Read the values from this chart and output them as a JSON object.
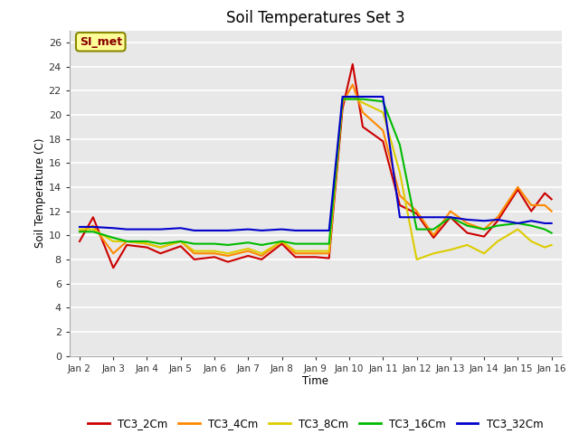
{
  "title": "Soil Temperatures Set 3",
  "xlabel": "Time",
  "ylabel": "Soil Temperature (C)",
  "ylim": [
    0,
    27
  ],
  "yticks": [
    0,
    2,
    4,
    6,
    8,
    10,
    12,
    14,
    16,
    18,
    20,
    22,
    24,
    26
  ],
  "bg_color": "#d8d8d8",
  "plot_bg": "#e8e8e8",
  "annotation_text": "SI_met",
  "annotation_bg": "#ffff99",
  "annotation_fg": "#880000",
  "series_colors": [
    "#cc0000",
    "#ff8800",
    "#ddcc00",
    "#00bb00",
    "#0000cc"
  ],
  "series_labels": [
    "TC3_2Cm",
    "TC3_4Cm",
    "TC3_8Cm",
    "TC3_16Cm",
    "TC3_32Cm"
  ],
  "x_tick_labels": [
    "Jan 2",
    "Jan 3",
    "Jan 4",
    "Jan 5",
    "Jan 6",
    "Jan 7",
    "Jan 8",
    "Jan 9",
    "Jan 10",
    "Jan 11",
    "Jan 12",
    "Jan 13",
    "Jan 14",
    "Jan 15",
    "Jan 16"
  ],
  "series_x": {
    "TC3_2Cm": [
      0,
      0.4,
      1,
      1.4,
      2,
      2.4,
      3,
      3.4,
      4,
      4.4,
      5,
      5.4,
      6,
      6.4,
      7,
      7.4,
      7.8,
      8.1,
      8.4,
      9,
      9.5,
      10,
      10.5,
      11,
      11.5,
      12,
      12.4,
      13,
      13.4,
      13.8,
      14
    ],
    "TC3_4Cm": [
      0,
      0.4,
      1,
      1.4,
      2,
      2.4,
      3,
      3.4,
      4,
      4.4,
      5,
      5.4,
      6,
      6.4,
      7,
      7.4,
      7.8,
      8.1,
      8.4,
      9,
      9.5,
      10,
      10.5,
      11,
      11.5,
      12,
      12.4,
      13,
      13.4,
      13.8,
      14
    ],
    "TC3_8Cm": [
      0,
      0.4,
      1,
      1.4,
      2,
      2.4,
      3,
      3.4,
      4,
      4.4,
      5,
      5.4,
      6,
      6.4,
      7,
      7.4,
      7.8,
      8.1,
      8.4,
      9,
      9.5,
      10,
      10.5,
      11,
      11.5,
      12,
      12.4,
      13,
      13.4,
      13.8,
      14
    ],
    "TC3_16Cm": [
      0,
      0.4,
      1,
      1.4,
      2,
      2.4,
      3,
      3.4,
      4,
      4.4,
      5,
      5.4,
      6,
      6.4,
      7,
      7.4,
      7.8,
      8.1,
      8.4,
      9,
      9.5,
      10,
      10.5,
      11,
      11.5,
      12,
      12.4,
      13,
      13.4,
      13.8,
      14
    ],
    "TC3_32Cm": [
      0,
      0.4,
      1,
      1.4,
      2,
      2.4,
      3,
      3.4,
      4,
      4.4,
      5,
      5.4,
      6,
      6.4,
      7,
      7.4,
      7.8,
      8.1,
      8.4,
      9,
      9.5,
      10,
      10.5,
      11,
      11.5,
      12,
      12.4,
      13,
      13.4,
      13.8,
      14
    ]
  },
  "series_y": {
    "TC3_2Cm": [
      9.5,
      11.5,
      7.3,
      9.2,
      9.0,
      8.5,
      9.1,
      8.0,
      8.2,
      7.8,
      8.3,
      8.0,
      9.3,
      8.2,
      8.2,
      8.1,
      20.5,
      24.2,
      19.0,
      17.8,
      12.5,
      11.8,
      9.8,
      11.5,
      10.2,
      9.9,
      11.2,
      13.8,
      12.0,
      13.5,
      13.0
    ],
    "TC3_4Cm": [
      10.3,
      10.8,
      8.5,
      9.5,
      9.3,
      9.0,
      9.5,
      8.5,
      8.5,
      8.3,
      8.7,
      8.3,
      9.5,
      8.5,
      8.5,
      8.5,
      21.0,
      22.5,
      20.2,
      18.7,
      13.3,
      12.0,
      10.0,
      12.0,
      11.0,
      10.5,
      11.5,
      14.0,
      12.5,
      12.5,
      12.0
    ],
    "TC3_8Cm": [
      10.5,
      10.5,
      9.5,
      9.5,
      9.3,
      9.0,
      9.5,
      8.7,
      8.7,
      8.5,
      8.9,
      8.5,
      9.5,
      8.7,
      8.7,
      8.7,
      21.2,
      21.5,
      21.0,
      20.2,
      15.2,
      8.0,
      8.5,
      8.8,
      9.2,
      8.5,
      9.5,
      10.5,
      9.5,
      9.0,
      9.2
    ],
    "TC3_16Cm": [
      10.3,
      10.3,
      9.8,
      9.5,
      9.5,
      9.3,
      9.5,
      9.3,
      9.3,
      9.2,
      9.4,
      9.2,
      9.5,
      9.3,
      9.3,
      9.3,
      21.3,
      21.3,
      21.3,
      21.1,
      17.5,
      10.5,
      10.5,
      11.5,
      10.8,
      10.5,
      10.8,
      11.0,
      10.8,
      10.5,
      10.2
    ],
    "TC3_32Cm": [
      10.7,
      10.7,
      10.6,
      10.5,
      10.5,
      10.5,
      10.6,
      10.4,
      10.4,
      10.4,
      10.5,
      10.4,
      10.5,
      10.4,
      10.4,
      10.4,
      21.5,
      21.5,
      21.5,
      21.5,
      11.5,
      11.5,
      11.5,
      11.5,
      11.3,
      11.2,
      11.3,
      11.0,
      11.2,
      11.0,
      11.0
    ]
  }
}
